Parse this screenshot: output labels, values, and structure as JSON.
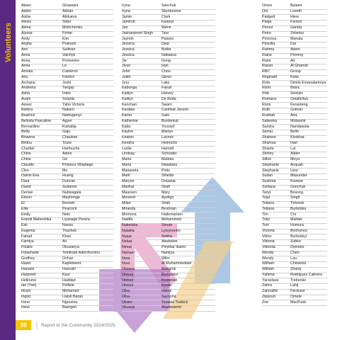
{
  "sidebar": {
    "title": "Volunteers"
  },
  "columns": [
    [
      [
        "Abeer",
        "Ghawaini"
      ],
      [
        "Adam",
        "Adrian"
      ],
      [
        "Aishe",
        "Abilueva"
      ],
      [
        "Alexis",
        "Sidor"
      ],
      [
        "Alena",
        "Mishchenko"
      ],
      [
        "Alyssa",
        "Pohar"
      ],
      [
        "Andy",
        "Kim"
      ],
      [
        "Anjiha",
        "Prakash"
      ],
      [
        "Ann",
        "Sullivan"
      ],
      [
        "Anna",
        "Valchyk"
      ],
      [
        "Anna",
        "Protsenko"
      ],
      [
        "Anna",
        "Le"
      ],
      [
        "Annika",
        "Cameron"
      ],
      [
        "Anu",
        "Folefoc"
      ],
      [
        "Archana",
        "Joshi"
      ],
      [
        "Arisleina",
        "Tsegay"
      ],
      [
        "Asha",
        "Irobe"
      ],
      [
        "Avani",
        "Solanki"
      ],
      [
        "Azeez",
        "Yabo Victoria"
      ],
      [
        "Barbra",
        "Nakaro"
      ],
      [
        "Beatrice",
        "Namugenyi"
      ],
      [
        "Belinda Pascaline",
        "Agyei"
      ],
      [
        "Bernardine",
        "Kishalija"
      ],
      [
        "Betty",
        "Gaju"
      ],
      [
        "Bhawna",
        "Chauhan"
      ],
      [
        "Bintou",
        "Toure"
      ],
      [
        "Charbel",
        "Harfouche"
      ],
      [
        "Chloe",
        "Asten"
      ],
      [
        "Chloe",
        "Go"
      ],
      [
        "Claudio",
        "Polanco Villadiego"
      ],
      [
        "Cleo",
        "Mo"
      ],
      [
        "Dalvin Eva",
        "Huang"
      ],
      [
        "Dara",
        "Duncan"
      ],
      [
        "David",
        "Sultanov"
      ],
      [
        "Denise",
        "Nabisagala"
      ],
      [
        "Edson",
        "Mashonga"
      ],
      [
        "El",
        "Bernett"
      ],
      [
        "Ellie",
        "Peacock"
      ],
      [
        "Emily",
        "Nets"
      ],
      [
        "Erandi Maheshika",
        "Liyanage Perera"
      ],
      [
        "Esli",
        "Navas"
      ],
      [
        "Eugenia",
        "Tkachuk"
      ],
      [
        "Fahad",
        "Khan"
      ],
      [
        "Farhiya",
        "Ali"
      ],
      [
        "Folake",
        "Okusanya"
      ],
      [
        "Folashade",
        "Temitope Aderohunmu"
      ],
      [
        "Godfrey",
        "Ochan"
      ],
      [
        "Hazel",
        "Kapletwent"
      ],
      [
        "Hanane",
        "Hassairi"
      ],
      [
        "Harpreet",
        "Kaur"
      ],
      [
        "Helloune",
        "Haddad"
      ],
      [
        "Ian (Yan)",
        "Pellisie"
      ],
      [
        "Ikram",
        "Mohamed"
      ],
      [
        "Ingrid",
        "Llalyk Baran"
      ],
      [
        "Irene",
        "Ngounou"
      ],
      [
        "Irene",
        "Baergen"
      ]
    ],
    [
      [
        "Iryna",
        "Savchuk"
      ],
      [
        "Iryna",
        "Skystunova"
      ],
      [
        "Jamie",
        "Clark"
      ],
      [
        "Jamiruh",
        "Kalanzi"
      ],
      [
        "Jan",
        "Wenn"
      ],
      [
        "Jashanpreet Singh",
        "Taur"
      ],
      [
        "Jazmin",
        "Palacio"
      ],
      [
        "Jessica",
        "Diep"
      ],
      [
        "Jessica",
        "Butler"
      ],
      [
        "Jessica",
        "Nabassa"
      ],
      [
        "Jie",
        "Gong"
      ],
      [
        "Jiyun",
        "Han"
      ],
      [
        "John",
        "Chou"
      ],
      [
        "Juliet",
        "Gimei"
      ],
      [
        "Juru",
        "Lako"
      ],
      [
        "Kabunga",
        "Faisal"
      ],
      [
        "Kaitlyn",
        "Harvey"
      ],
      [
        "Kaitlyn",
        "De Boda"
      ],
      [
        "Kanchan",
        "Swarn"
      ],
      [
        "Karalee",
        "Cardinal Janzen"
      ],
      [
        "Karter",
        "Gale"
      ],
      [
        "Katherine",
        "Burdeniuk"
      ],
      [
        "Katia",
        "Youssef"
      ],
      [
        "Kaylee",
        "Martyn"
      ],
      [
        "Keaton",
        "Lacroix"
      ],
      [
        "Kendra",
        "Heinrichs"
      ],
      [
        "Leslie",
        "Harnett"
      ],
      [
        "Lindsay",
        "Schrader"
      ],
      [
        "Maria",
        "Maleka"
      ],
      [
        "Maria",
        "Nwadiaru"
      ],
      [
        "Marianela",
        "Pinto"
      ],
      [
        "Mark",
        "Shields"
      ],
      [
        "Maryse",
        "Douania"
      ],
      [
        "Mashal",
        "Shafi"
      ],
      [
        "Maureen",
        "Mary"
      ],
      [
        "Meseret",
        "Ayelign"
      ],
      [
        "Milan",
        "Shah"
      ],
      [
        "Miranda",
        "Bestman"
      ],
      [
        "Momona",
        "Hailemariam"
      ],
      [
        "Nadifa",
        "Mohammed"
      ],
      [
        "Naketsha",
        "Stoute"
      ],
      [
        "Natallia",
        "Lytvynenko"
      ],
      [
        "Nazar",
        "Sokha"
      ],
      [
        "Nebat",
        "Abubeker"
      ],
      [
        "Nimat",
        "Pinyikar Ikaivo"
      ],
      [
        "Nisham",
        "Nankya"
      ],
      [
        "Nora",
        "Wilm"
      ],
      [
        "Nour",
        "Al Muhammedawi"
      ],
      [
        "Oksana",
        "Makaruk"
      ],
      [
        "Oleksii",
        "Burlutskyi"
      ],
      [
        "Oleksii",
        "Kostenko"
      ],
      [
        "Oleksii",
        "Kroda"
      ],
      [
        "Olha",
        "Vidinii"
      ],
      [
        "Olha",
        "Sachyna"
      ],
      [
        "Olivier",
        "Tesawa Tsafack"
      ],
      [
        "Olusegi",
        "Aladesanmi"
      ]
    ],
    [
      [
        "Omes",
        "Balami"
      ],
      [
        "Oni",
        "Loveth"
      ],
      [
        "Padgett",
        "Hiew"
      ],
      [
        "Paige",
        "Fenton"
      ],
      [
        "Perusi",
        "Ganda"
      ],
      [
        "Petro",
        "Zelenko"
      ],
      [
        "Princess",
        "Manala"
      ],
      [
        "Priscilla",
        "Dai"
      ],
      [
        "Rahma",
        "Adem"
      ],
      [
        "Raine",
        "Pomroy"
      ],
      [
        "Rami",
        "Ali"
      ],
      [
        "Razan",
        "Al Ghamdi"
      ],
      [
        "RBC",
        "Group"
      ],
      [
        "Reginald",
        "Keke"
      ],
      [
        "Rola",
        "Dimilo Emanalamoya"
      ],
      [
        "Rishi",
        "Batra"
      ],
      [
        "Rob",
        "Sinclair"
      ],
      [
        "Romana",
        "Ostafichuk"
      ],
      [
        "Romi",
        "Keranteng"
      ],
      [
        "Ruth",
        "Goitom"
      ],
      [
        "Ruzbah",
        "Aria"
      ],
      [
        "Sabeeka",
        "Mubashir"
      ],
      [
        "Sandra",
        "Nandawula"
      ],
      [
        "Semiu",
        "Bello"
      ],
      [
        "Shaheer",
        "Khokhar"
      ],
      [
        "Shamsa",
        "Hari"
      ],
      [
        "Shante",
        "Lai"
      ],
      [
        "Shirley",
        "Allder"
      ],
      [
        "Sifiso",
        "Moyo"
      ],
      [
        "Stephanie",
        "Acquah"
      ],
      [
        "Stephanie",
        "Uzor"
      ],
      [
        "Sultan",
        "Masunder"
      ],
      [
        "Sushma",
        "Kunwar"
      ],
      [
        "Svitlana",
        "Gonchuk"
      ],
      [
        "Tanyi",
        "Besong"
      ],
      [
        "Tejal",
        "Singh"
      ],
      [
        "Tetiana",
        "Tkhoruk"
      ],
      [
        "Tetiana",
        "Burlutska"
      ],
      [
        "Tim",
        "Chi"
      ],
      [
        "Toby",
        "Maltais"
      ],
      [
        "Toni",
        "Humura"
      ],
      [
        "Victoria",
        "Bochonou"
      ],
      [
        "Viktor",
        "Burlutskyi"
      ],
      [
        "Viktoria",
        "Zubko"
      ],
      [
        "Viktoriia",
        "Deineko"
      ],
      [
        "Wendy",
        "Chen"
      ],
      [
        "Wendy",
        "Lau"
      ],
      [
        "William",
        "Chiswicki"
      ],
      [
        "William",
        "Zhang"
      ],
      [
        "Yahima",
        "Rodriguez Cabrera"
      ],
      [
        "Yaroslava",
        "Trebenko"
      ],
      [
        "Zahra",
        "Lahij"
      ],
      [
        "Zannathe",
        "Ferdussi"
      ],
      [
        "Zippouh",
        "Omete"
      ],
      [
        "Zoe",
        "MacPunk"
      ]
    ]
  ],
  "footer": {
    "page": "38",
    "text": "Report to the Community 2024/2025"
  }
}
